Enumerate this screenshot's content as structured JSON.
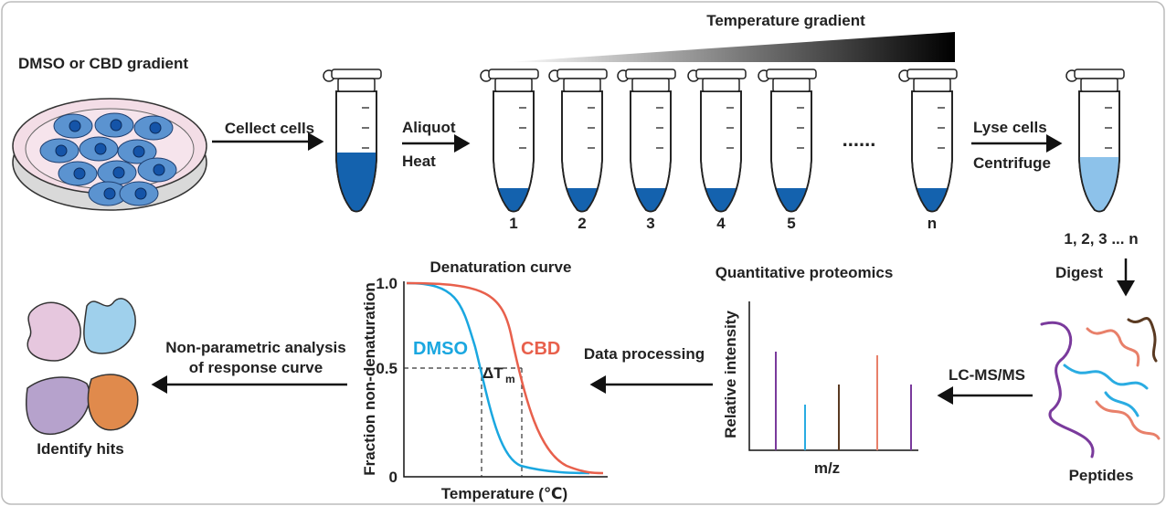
{
  "top_row": {
    "gradient_label": "Temperature gradient",
    "dish_label": "DMSO or CBD gradient",
    "collect_step": "Cellect cells",
    "aliquot_step": [
      "Aliquot",
      "Heat"
    ],
    "tube_labels": [
      "1",
      "2",
      "3",
      "4",
      "5",
      "n"
    ],
    "ellipsis": "......",
    "lyse_step": [
      "Lyse cells",
      "Centrifuge"
    ],
    "pooled_label": "1, 2, 3 ... n"
  },
  "right_column": {
    "digest_step": "Digest",
    "peptides_label": "Peptides",
    "lcms_step": "LC-MS/MS"
  },
  "proteomics_plot": {
    "title": "Quantitative proteomics",
    "y_label": "Relative intensity",
    "x_label": "m/z"
  },
  "processing_step": "Data processing",
  "denaturation_plot": {
    "title": "Denaturation curve",
    "y_label": "Fraction non-denaturation",
    "x_label": "Temperature (℃)",
    "y_tick_labels": [
      "1.0",
      "0.5",
      "0"
    ],
    "dmso_label": "DMSO",
    "cbd_label": "CBD",
    "delta_label": "ΔT",
    "delta_subscript": "m"
  },
  "analysis_step": [
    "Non-parametric analysis",
    "of response curve"
  ],
  "hits_label": "Identify hits"
}
